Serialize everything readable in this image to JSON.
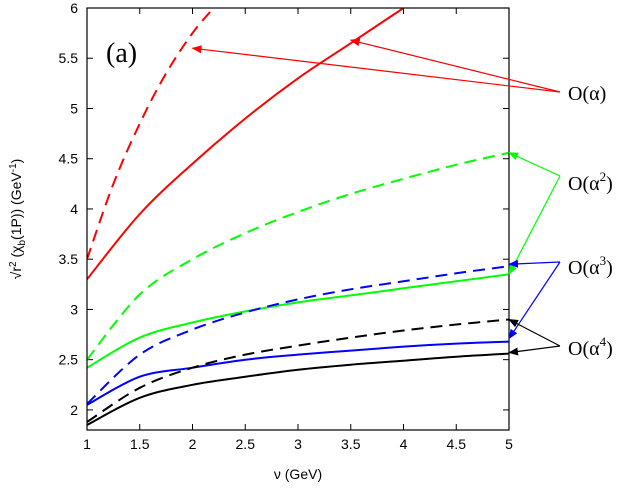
{
  "chart_data": {
    "type": "line",
    "panel_label": "(a)",
    "xlabel": "ν (GeV)",
    "ylabel_parts": {
      "pre": "√r",
      "sup": "2",
      "mid1": " (χ",
      "sub": "b",
      "mid2": "(1P)) (GeV",
      "sup2": "-1",
      "post": ")"
    },
    "xlim": [
      1,
      5
    ],
    "ylim": [
      1.8,
      6
    ],
    "x_ticks": [
      1,
      1.5,
      2,
      2.5,
      3,
      3.5,
      4,
      4.5,
      5
    ],
    "x_tick_labels": [
      "1",
      "1.5",
      "2",
      "2.5",
      "3",
      "3.5",
      "4",
      "4.5",
      "5"
    ],
    "y_ticks": [
      2,
      2.5,
      3,
      3.5,
      4,
      4.5,
      5,
      5.5,
      6
    ],
    "y_tick_labels": [
      "2",
      "2.5",
      "3",
      "3.5",
      "4",
      "4.5",
      "5",
      "5.5",
      "6"
    ],
    "x": [
      1,
      1.5,
      2,
      2.5,
      3,
      3.5,
      4,
      4.5,
      5
    ],
    "series": [
      {
        "order": "O(α)",
        "style": "solid",
        "color": "#ff0000",
        "x": [
          1,
          1.5,
          2,
          2.5,
          3,
          3.5,
          4
        ],
        "values": [
          3.3,
          3.95,
          4.45,
          4.9,
          5.3,
          5.65,
          6.0
        ]
      },
      {
        "order": "O(α)",
        "style": "dashed",
        "color": "#ff0000",
        "x": [
          1,
          1.25,
          1.5,
          1.75,
          2,
          2.2
        ],
        "values": [
          3.5,
          4.25,
          4.85,
          5.35,
          5.75,
          6.0
        ]
      },
      {
        "order": "O(α²)",
        "style": "solid",
        "color": "#00ff00",
        "x": [
          1,
          1.5,
          2,
          2.5,
          3,
          3.5,
          4,
          4.5,
          5
        ],
        "values": [
          2.42,
          2.72,
          2.87,
          2.98,
          3.07,
          3.14,
          3.21,
          3.28,
          3.35
        ]
      },
      {
        "order": "O(α²)",
        "style": "dashed",
        "color": "#00ff00",
        "x": [
          1,
          1.5,
          2,
          2.5,
          3,
          3.5,
          4,
          4.5,
          5
        ],
        "values": [
          2.5,
          3.15,
          3.5,
          3.76,
          3.97,
          4.15,
          4.3,
          4.44,
          4.56
        ]
      },
      {
        "order": "O(α³)",
        "style": "solid",
        "color": "#0000ff",
        "x": [
          1,
          1.5,
          2,
          2.5,
          3,
          3.5,
          4,
          4.5,
          5
        ],
        "values": [
          2.05,
          2.33,
          2.42,
          2.5,
          2.55,
          2.59,
          2.63,
          2.66,
          2.68
        ]
      },
      {
        "order": "O(α³)",
        "style": "dashed",
        "color": "#0000ff",
        "x": [
          1,
          1.5,
          2,
          2.5,
          3,
          3.5,
          4,
          4.5,
          5
        ],
        "values": [
          2.06,
          2.55,
          2.8,
          2.97,
          3.1,
          3.2,
          3.28,
          3.36,
          3.43
        ]
      },
      {
        "order": "O(α⁴)",
        "style": "solid",
        "color": "#000000",
        "x": [
          1,
          1.5,
          2,
          2.5,
          3,
          3.5,
          4,
          4.5,
          5
        ],
        "values": [
          1.85,
          2.12,
          2.25,
          2.33,
          2.4,
          2.45,
          2.49,
          2.53,
          2.56
        ]
      },
      {
        "order": "O(α⁴)",
        "style": "dashed",
        "color": "#000000",
        "x": [
          1,
          1.5,
          2,
          2.5,
          3,
          3.5,
          4,
          4.5,
          5
        ],
        "values": [
          1.88,
          2.22,
          2.42,
          2.55,
          2.64,
          2.72,
          2.79,
          2.85,
          2.9
        ]
      }
    ],
    "annotations": [
      {
        "base": "O(α",
        "sup": "",
        "post": ")",
        "arrow_color": "#ff0000"
      },
      {
        "base": "O(α",
        "sup": "2",
        "post": ")",
        "arrow_color": "#00ff00"
      },
      {
        "base": "O(α",
        "sup": "3",
        "post": ")",
        "arrow_color": "#0000ff"
      },
      {
        "base": "O(α",
        "sup": "4",
        "post": ")",
        "arrow_color": "#000000"
      }
    ],
    "grid": false,
    "legend": "none"
  }
}
